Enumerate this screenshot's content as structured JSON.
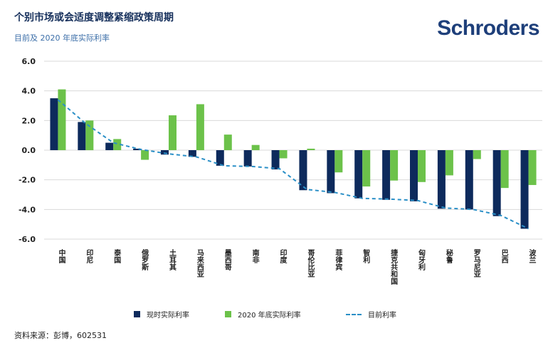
{
  "header": {
    "title": "个别市场或会适度调整紧缩政策周期",
    "subtitle": "目前及 2020 年底实际利率",
    "brand": "Schroders"
  },
  "source": "资料来源：彭博，602531",
  "colors": {
    "current": "#0d2a5c",
    "yearend": "#6cc24a",
    "nominal": "#2a8fc7",
    "grid": "#d9d9d9"
  },
  "chart_data": {
    "type": "bar",
    "categories": [
      "中国",
      "印尼",
      "泰国",
      "俄罗斯",
      "土耳其",
      "马来西亚",
      "墨西哥",
      "南非",
      "印度",
      "哥伦比亚",
      "菲律宾",
      "智利",
      "捷克共和国",
      "匈牙利",
      "秘鲁",
      "罗马尼亚",
      "巴西",
      "波兰"
    ],
    "series": [
      {
        "name": "现时实际利率",
        "values": [
          3.5,
          1.9,
          0.5,
          0.1,
          -0.3,
          -0.45,
          -1.05,
          -1.1,
          -1.3,
          -2.7,
          -2.9,
          -3.25,
          -3.35,
          -3.45,
          -3.95,
          -4.0,
          -4.45,
          -5.3
        ]
      },
      {
        "name": "2020 年底实际利率",
        "values": [
          4.1,
          2.0,
          0.75,
          -0.65,
          2.35,
          3.1,
          1.05,
          0.35,
          -0.55,
          0.1,
          -1.5,
          -2.45,
          -2.05,
          -2.15,
          -1.7,
          -0.6,
          -2.55,
          -2.35
        ]
      },
      {
        "name": "目前利率",
        "values": [
          3.4,
          1.8,
          0.5,
          0.05,
          -0.25,
          -0.45,
          -1.05,
          -1.1,
          -1.25,
          -2.65,
          -2.85,
          -3.25,
          -3.3,
          -3.4,
          -3.9,
          -4.0,
          -4.4,
          -5.3
        ]
      }
    ],
    "yticks": [
      "6.0",
      "4.0",
      "2.0",
      "0.0",
      "-2.0",
      "-4.0",
      "-6.0"
    ],
    "ylim": [
      -6,
      6
    ],
    "grid": true,
    "legend_position": "bottom"
  }
}
